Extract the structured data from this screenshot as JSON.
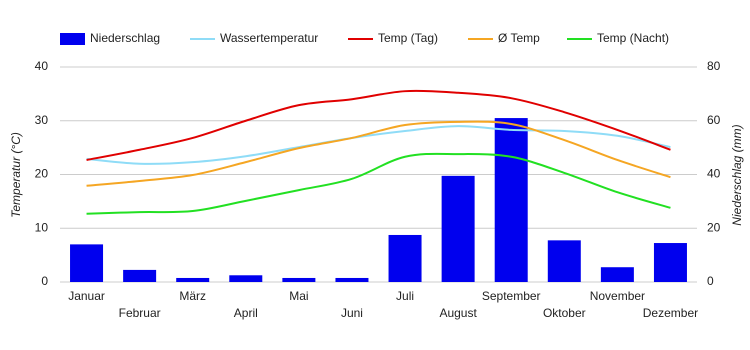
{
  "chart_data": {
    "type": "combo",
    "categories": [
      "Januar",
      "Februar",
      "März",
      "April",
      "Mai",
      "Juni",
      "Juli",
      "August",
      "September",
      "Oktober",
      "November",
      "Dezember"
    ],
    "ylabel": "Temperatur (°C)",
    "y2label": "Niederschlag (mm)",
    "ylim": [
      0,
      40
    ],
    "yticks": [
      0,
      10,
      20,
      30,
      40
    ],
    "y2lim": [
      0,
      80
    ],
    "y2ticks": [
      0,
      20,
      40,
      60,
      80
    ],
    "grid": true,
    "legend": "top",
    "series": [
      {
        "name": "Niederschlag",
        "type": "bar",
        "axis": "y2",
        "color": "#0000ee",
        "values": [
          14,
          4.5,
          1.5,
          2.5,
          1.5,
          1.5,
          17.5,
          39.5,
          61,
          15.5,
          5.5,
          14.5
        ]
      },
      {
        "name": "Wassertemperatur",
        "type": "line",
        "color": "#8fdcf7",
        "values": [
          22.9,
          22,
          22.3,
          23.4,
          25.1,
          26.8,
          28.1,
          29,
          28.3,
          28.1,
          27.2,
          25.1
        ]
      },
      {
        "name": "Temp (Tag)",
        "type": "line",
        "color": "#e00000",
        "values": [
          22.7,
          24.6,
          26.8,
          30,
          32.9,
          34,
          35.5,
          35.2,
          34.2,
          31.6,
          28.3,
          24.6
        ]
      },
      {
        "name": "Ø Temp",
        "type": "line",
        "color": "#f5a623",
        "values": [
          17.9,
          18.8,
          19.9,
          22.3,
          24.9,
          26.8,
          29.2,
          29.8,
          29.4,
          26.4,
          22.7,
          19.5
        ]
      },
      {
        "name": "Temp (Nacht)",
        "type": "line",
        "color": "#22e022",
        "values": [
          12.7,
          13,
          13.2,
          15.1,
          17.1,
          19.2,
          23.3,
          23.8,
          23.3,
          20.3,
          16.7,
          13.8
        ]
      }
    ]
  }
}
